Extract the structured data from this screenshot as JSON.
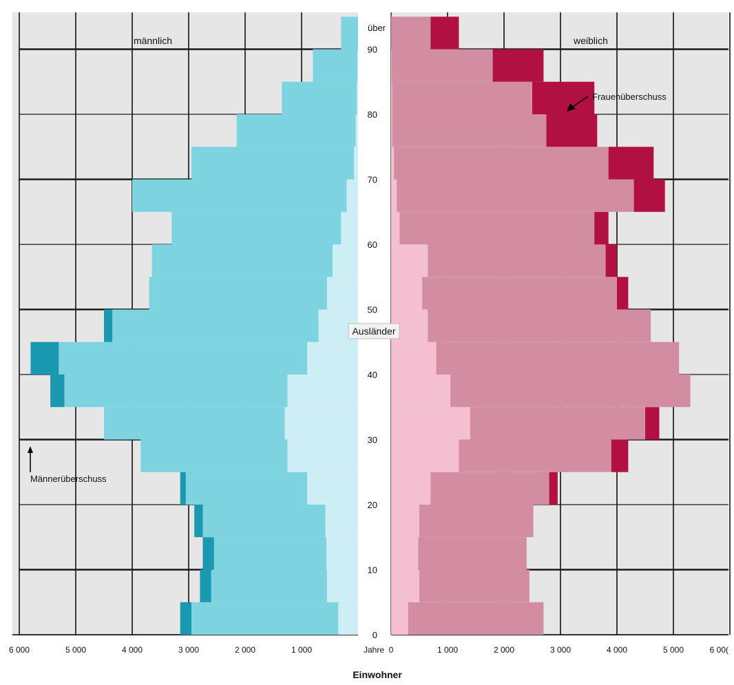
{
  "chart_data": {
    "type": "bar",
    "subtype": "population-pyramid",
    "xlabel": "Einwohner",
    "ylabel": "Jahre",
    "top_age_label": "über",
    "xlim": [
      0,
      6000
    ],
    "x_ticks": [
      0,
      1000,
      2000,
      3000,
      4000,
      5000,
      6000
    ],
    "x_tick_labels_male": [
      "6 000",
      "5 000",
      "4 000",
      "3 000",
      "2 000",
      "1 000"
    ],
    "x_tick_labels_female": [
      "1 000",
      "2 000",
      "3 000",
      "4 000",
      "5 000",
      "6 00("
    ],
    "ylim": [
      0,
      95
    ],
    "y_ticks": [
      0,
      10,
      20,
      30,
      40,
      50,
      60,
      70,
      80,
      90
    ],
    "grid": true,
    "age_bands": [
      {
        "age": 0,
        "male_total": 2950,
        "male_foreign": 350,
        "male_excess": 200,
        "female_total": 2700,
        "female_foreign": 300,
        "female_excess": 0
      },
      {
        "age": 5,
        "male_total": 2600,
        "male_foreign": 550,
        "male_excess": 200,
        "female_total": 2450,
        "female_foreign": 500,
        "female_excess": 0
      },
      {
        "age": 10,
        "male_total": 2550,
        "male_foreign": 560,
        "male_excess": 200,
        "female_total": 2400,
        "female_foreign": 480,
        "female_excess": 0
      },
      {
        "age": 15,
        "male_total": 2750,
        "male_foreign": 580,
        "male_excess": 150,
        "female_total": 2520,
        "female_foreign": 500,
        "female_excess": 0
      },
      {
        "age": 20,
        "male_total": 3050,
        "male_foreign": 900,
        "male_excess": 100,
        "female_total": 2800,
        "female_foreign": 700,
        "female_excess": 150
      },
      {
        "age": 25,
        "male_total": 3850,
        "male_foreign": 1250,
        "male_excess": 0,
        "female_total": 3900,
        "female_foreign": 1200,
        "female_excess": 300
      },
      {
        "age": 30,
        "male_total": 4500,
        "male_foreign": 1300,
        "male_excess": 0,
        "female_total": 4500,
        "female_foreign": 1400,
        "female_excess": 250
      },
      {
        "age": 35,
        "male_total": 5200,
        "male_foreign": 1250,
        "male_excess": 250,
        "female_total": 5300,
        "female_foreign": 1050,
        "female_excess": 0
      },
      {
        "age": 40,
        "male_total": 5300,
        "male_foreign": 900,
        "male_excess": 500,
        "female_total": 5100,
        "female_foreign": 800,
        "female_excess": 0
      },
      {
        "age": 45,
        "male_total": 4350,
        "male_foreign": 700,
        "male_excess": 150,
        "female_total": 4600,
        "female_foreign": 650,
        "female_excess": 0
      },
      {
        "age": 50,
        "male_total": 3700,
        "male_foreign": 550,
        "male_excess": 0,
        "female_total": 4000,
        "female_foreign": 550,
        "female_excess": 200
      },
      {
        "age": 55,
        "male_total": 3650,
        "male_foreign": 450,
        "male_excess": 0,
        "female_total": 3800,
        "female_foreign": 650,
        "female_excess": 200
      },
      {
        "age": 60,
        "male_total": 3300,
        "male_foreign": 300,
        "male_excess": 0,
        "female_total": 3600,
        "female_foreign": 150,
        "female_excess": 250
      },
      {
        "age": 65,
        "male_total": 4000,
        "male_foreign": 200,
        "male_excess": 0,
        "female_total": 4300,
        "female_foreign": 100,
        "female_excess": 550
      },
      {
        "age": 70,
        "male_total": 2950,
        "male_foreign": 70,
        "male_excess": 0,
        "female_total": 3850,
        "female_foreign": 50,
        "female_excess": 800
      },
      {
        "age": 75,
        "male_total": 2150,
        "male_foreign": 40,
        "male_excess": 0,
        "female_total": 2750,
        "female_foreign": 20,
        "female_excess": 900
      },
      {
        "age": 80,
        "male_total": 1350,
        "male_foreign": 20,
        "male_excess": 0,
        "female_total": 2500,
        "female_foreign": 20,
        "female_excess": 1100
      },
      {
        "age": 85,
        "male_total": 800,
        "male_foreign": 10,
        "male_excess": 0,
        "female_total": 1800,
        "female_foreign": 10,
        "female_excess": 900
      },
      {
        "age": 90,
        "male_total": 300,
        "male_foreign": 0,
        "male_excess": 0,
        "female_total": 700,
        "female_foreign": 0,
        "female_excess": 500
      }
    ],
    "series": [
      {
        "name": "männlich",
        "side": "left",
        "color_total": "#7dd3e0",
        "color_foreign": "#cdeef4",
        "color_excess": "#1a98b0"
      },
      {
        "name": "weiblich",
        "side": "right",
        "color_total": "#d38da3",
        "color_foreign": "#f4bfd0",
        "color_excess": "#b01042"
      }
    ],
    "annotations": {
      "male_side_label": "männlich",
      "female_side_label": "weiblich",
      "foreigners": "Ausländer",
      "male_excess": "Männerüberschuss",
      "female_excess": "Frauenüberschuss"
    }
  },
  "colors": {
    "plot_background": "#e6e6e6",
    "grid_major": "#000000",
    "grid_minor": "#1a1a1a"
  }
}
